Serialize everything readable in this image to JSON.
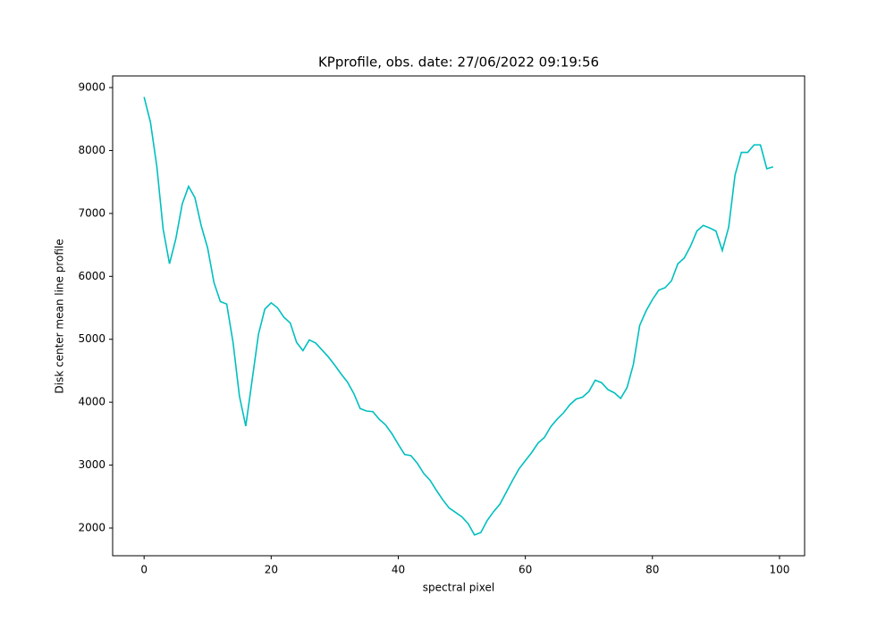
{
  "chart_data": {
    "type": "line",
    "title": "KPprofile, obs. date: 27/06/2022 09:19:56",
    "x_label": "spectral pixel",
    "y_label": "Disk center mean line profile",
    "x": [
      0,
      1,
      2,
      3,
      4,
      5,
      6,
      7,
      8,
      9,
      10,
      11,
      12,
      13,
      14,
      15,
      16,
      17,
      18,
      19,
      20,
      21,
      22,
      23,
      24,
      25,
      26,
      27,
      28,
      29,
      30,
      31,
      32,
      33,
      34,
      35,
      36,
      37,
      38,
      39,
      40,
      41,
      42,
      43,
      44,
      45,
      46,
      47,
      48,
      49,
      50,
      51,
      52,
      53,
      54,
      55,
      56,
      57,
      58,
      59,
      60,
      61,
      62,
      63,
      64,
      65,
      66,
      67,
      68,
      69,
      70,
      71,
      72,
      73,
      74,
      75,
      76,
      77,
      78,
      79,
      80,
      81,
      82,
      83,
      84,
      85,
      86,
      87,
      88,
      89,
      90,
      91,
      92,
      93,
      94,
      95,
      96,
      97,
      98,
      99
    ],
    "values": [
      8850,
      8450,
      7750,
      6750,
      6200,
      6600,
      7150,
      7430,
      7250,
      6800,
      6450,
      5900,
      5600,
      5560,
      4950,
      4100,
      3620,
      4350,
      5080,
      5480,
      5580,
      5500,
      5350,
      5260,
      4950,
      4820,
      4990,
      4940,
      4830,
      4720,
      4590,
      4450,
      4320,
      4140,
      3900,
      3860,
      3850,
      3730,
      3640,
      3500,
      3330,
      3170,
      3150,
      3030,
      2870,
      2760,
      2600,
      2450,
      2320,
      2250,
      2180,
      2070,
      1890,
      1930,
      2120,
      2260,
      2380,
      2570,
      2760,
      2940,
      3070,
      3200,
      3350,
      3440,
      3610,
      3730,
      3830,
      3960,
      4050,
      4080,
      4170,
      4350,
      4310,
      4200,
      4150,
      4060,
      4230,
      4600,
      5220,
      5450,
      5630,
      5780,
      5820,
      5930,
      6200,
      6290,
      6480,
      6720,
      6810,
      6770,
      6720,
      6410,
      6780,
      7610,
      7970,
      7970,
      8090,
      8090,
      7710,
      7740
    ],
    "color": "#00bfbf",
    "xlim": [
      -4.95,
      103.95
    ],
    "ylim": [
      1560,
      9185
    ],
    "xticks": [
      0,
      20,
      40,
      60,
      80,
      100
    ],
    "yticks": [
      2000,
      3000,
      4000,
      5000,
      6000,
      7000,
      8000,
      9000
    ]
  }
}
